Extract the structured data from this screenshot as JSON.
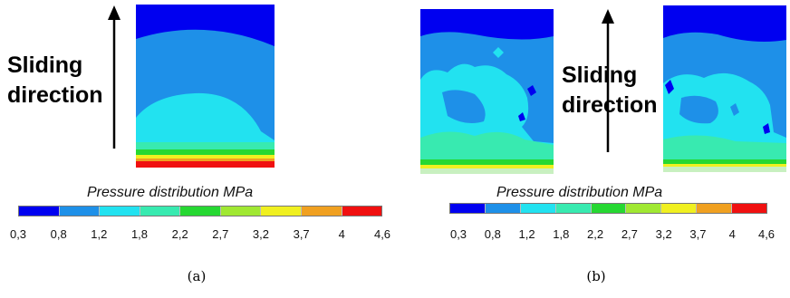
{
  "direction_label": {
    "line1": "Sliding",
    "line2": "direction"
  },
  "legend": {
    "title": "Pressure distribution MPa",
    "ticks": [
      "0,3",
      "0,8",
      "1,2",
      "1,8",
      "2,2",
      "2,7",
      "3,2",
      "3,7",
      "4",
      "4,6"
    ],
    "colors": [
      "#0000f0",
      "#1e90e8",
      "#22e2f0",
      "#38eab0",
      "#26d832",
      "#a0e832",
      "#f0f020",
      "#f0a020",
      "#f01010"
    ]
  },
  "captions": {
    "a": "(a)",
    "b": "(b)"
  }
}
